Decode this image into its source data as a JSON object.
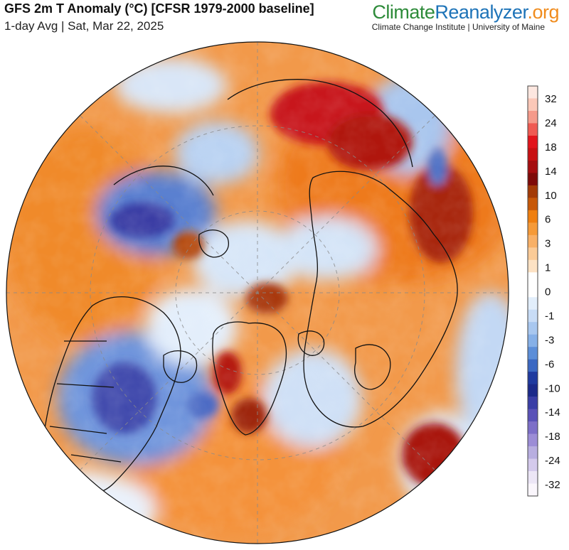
{
  "header": {
    "title": "GFS 2m T Anomaly (°C) [CFSR 1979-2000 baseline]",
    "subtitle": "1-day Avg | Sat, Mar 22, 2025"
  },
  "brand": {
    "part1": "Climate",
    "part2": "Reanalyzer",
    "part3": ".org",
    "org_line": "Climate Change Institute | University of Maine"
  },
  "legend": {
    "unit": "°C",
    "tick_labels": [
      "32",
      "24",
      "18",
      "14",
      "10",
      "6",
      "3",
      "1",
      "0",
      "-1",
      "-3",
      "-6",
      "-10",
      "-14",
      "-18",
      "-24",
      "-32"
    ],
    "bins": [
      "#fde7e0",
      "#fbc8b8",
      "#f59a8a",
      "#ef5a52",
      "#e2141b",
      "#c81012",
      "#a50d0f",
      "#7e0a08",
      "#a33a06",
      "#c75808",
      "#ef7f0f",
      "#f59a38",
      "#f8b067",
      "#fbcb97",
      "#fde2c4",
      "#ffffff",
      "#ffffff",
      "#e2eefb",
      "#c8dcf6",
      "#a8c7ef",
      "#86b0e7",
      "#5c8ed8",
      "#3b68c2",
      "#1f3a9f",
      "#1b2a8a",
      "#3a3ea6",
      "#5a52b8",
      "#7d6fc8",
      "#9c8dd6",
      "#b8aee0",
      "#d4caec",
      "#ece6f6",
      "#faf6fc"
    ],
    "colors": {
      "very_warm": "#c81012",
      "warm": "#ef7f0f",
      "neutral": "#ffffff",
      "cool": "#86b0e7",
      "very_cool": "#1f3a9f"
    }
  }
}
